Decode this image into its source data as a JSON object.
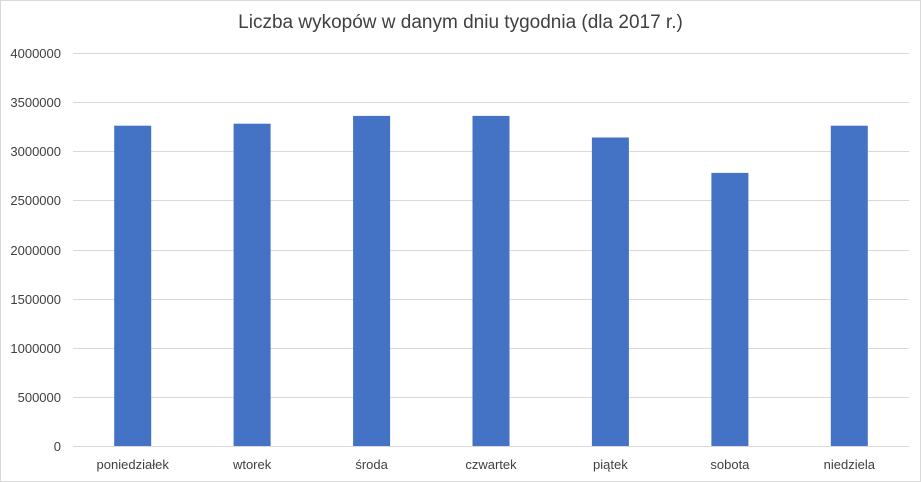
{
  "chart_data": {
    "type": "bar",
    "title": "Liczba wykopów w danym dniu tygodnia (dla 2017 r.)",
    "xlabel": "",
    "ylabel": "",
    "categories": [
      "poniedziałek",
      "wtorek",
      "środa",
      "czwartek",
      "piątek",
      "sobota",
      "niedziela"
    ],
    "values": [
      3260000,
      3280000,
      3360000,
      3360000,
      3140000,
      2780000,
      3260000
    ],
    "ylim": [
      0,
      4000000
    ],
    "yticks": [
      "0",
      "500000",
      "1000000",
      "1500000",
      "2000000",
      "2500000",
      "3000000",
      "3500000",
      "4000000"
    ],
    "grid": true,
    "legend": "none",
    "bar_color": "#4472c4",
    "grid_color": "#d9d9d9"
  }
}
